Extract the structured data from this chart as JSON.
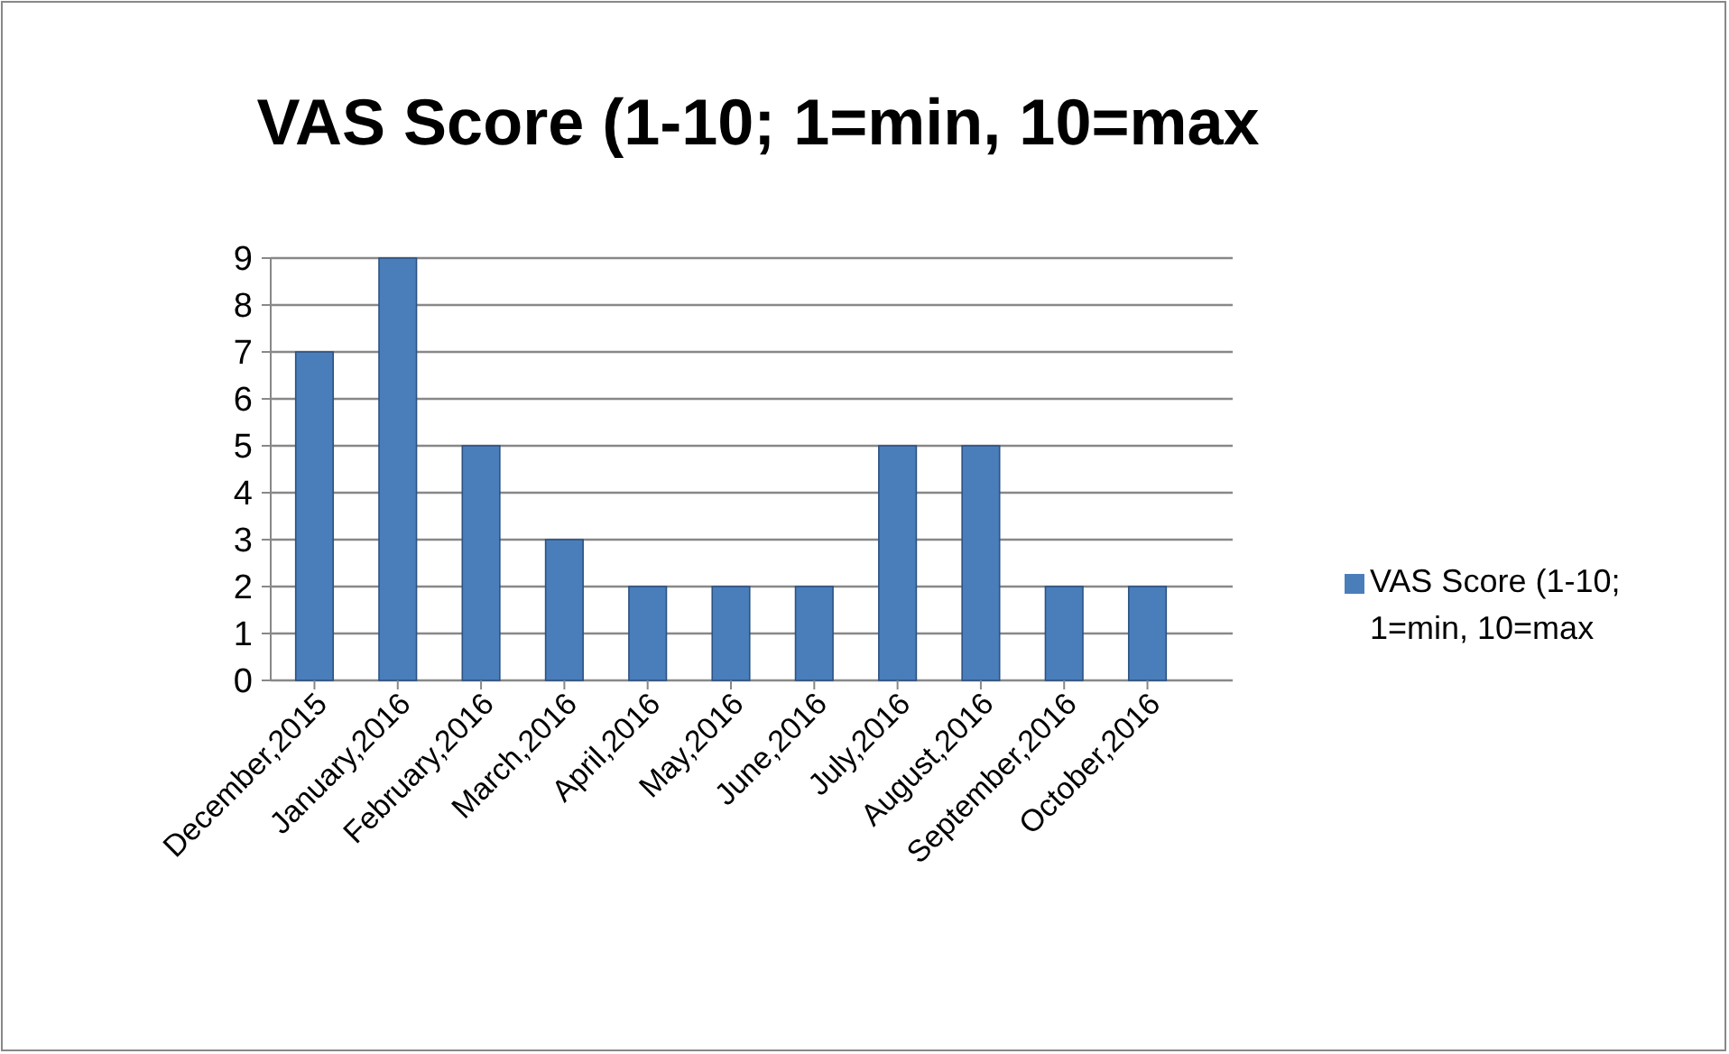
{
  "chart_data": {
    "type": "bar",
    "title": "VAS Score (1-10; 1=min, 10=max",
    "categories": [
      "December,2015",
      "January,2016",
      "February,2016",
      "March,2016",
      "April,2016",
      "May,2016",
      "June,2016",
      "July,2016",
      "August,2016",
      "September,2016",
      "October,2016"
    ],
    "series": [
      {
        "name": "VAS Score (1-10; 1=min, 10=max",
        "color": "#4a7ebb",
        "values": [
          7,
          9,
          5,
          3,
          2,
          2,
          2,
          5,
          5,
          2,
          2
        ]
      }
    ],
    "ylim": [
      0,
      9
    ],
    "yticks": [
      0,
      1,
      2,
      3,
      4,
      5,
      6,
      7,
      8,
      9
    ],
    "grid": "y",
    "legend": "right"
  }
}
